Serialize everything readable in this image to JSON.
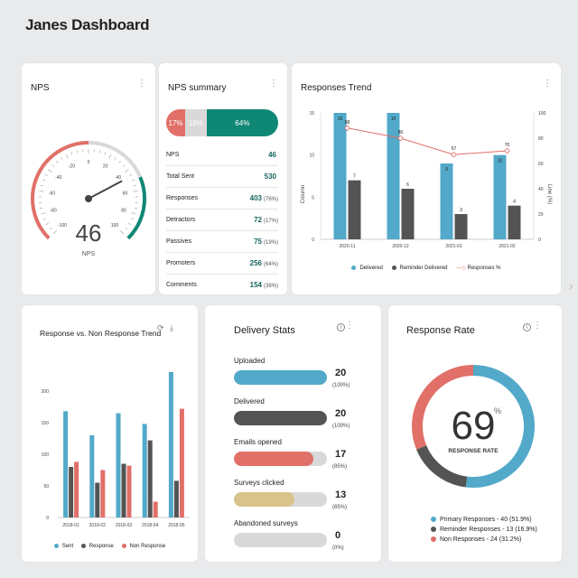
{
  "page": {
    "title": "Janes Dashboard"
  },
  "colors": {
    "teal": "#0f8775",
    "blue": "#52a9c9",
    "dark": "#545454",
    "red": "#e07068",
    "gray": "#d9d9d9",
    "sand": "#d8c48a"
  },
  "nps_card": {
    "title": "NPS",
    "value": "46",
    "value_label": "NPS",
    "ticks": [
      "-100",
      "-80",
      "-60",
      "-40",
      "-20",
      "0",
      "20",
      "40",
      "60",
      "80",
      "100"
    ],
    "gauge_value": 46
  },
  "summary": {
    "title": "NPS summary",
    "bar": [
      {
        "label": "17%",
        "value": 17,
        "color": "#e07068"
      },
      {
        "label": "19%",
        "value": 19,
        "color": "#d9d9d9"
      },
      {
        "label": "64%",
        "value": 64,
        "color": "#0f8775"
      }
    ],
    "rows": [
      {
        "label": "NPS",
        "value": "46",
        "pct": ""
      },
      {
        "label": "Total Sent",
        "value": "530",
        "pct": ""
      },
      {
        "label": "Responses",
        "value": "403",
        "pct": "(76%)"
      },
      {
        "label": "Detractors",
        "value": "72",
        "pct": "(17%)"
      },
      {
        "label": "Passives",
        "value": "75",
        "pct": "(19%)"
      },
      {
        "label": "Promoters",
        "value": "256",
        "pct": "(64%)"
      },
      {
        "label": "Comments",
        "value": "154",
        "pct": "(38%)"
      }
    ]
  },
  "trend": {
    "title": "Responses Trend",
    "left_axis_label": "Column",
    "right_axis_label": "Line (%)",
    "legend": [
      "Delivered",
      "Reminder Delivered",
      "Responses %"
    ]
  },
  "resp_vs_non": {
    "title": "Response vs. Non Response Trend",
    "legend": [
      "Sent",
      "Response",
      "Non Response"
    ]
  },
  "delivery": {
    "title": "Delivery Stats",
    "rows": [
      {
        "label": "Uploaded",
        "value": "20",
        "pct": "(100%)",
        "fill": 1.0,
        "color": "#52a9c9"
      },
      {
        "label": "Delivered",
        "value": "20",
        "pct": "(100%)",
        "fill": 1.0,
        "color": "#545454"
      },
      {
        "label": "Emails opened",
        "value": "17",
        "pct": "(85%)",
        "fill": 0.85,
        "color": "#e07068"
      },
      {
        "label": "Surveys clicked",
        "value": "13",
        "pct": "(65%)",
        "fill": 0.65,
        "color": "#d8c48a"
      },
      {
        "label": "Abandoned surveys",
        "value": "0",
        "pct": "(0%)",
        "fill": 0.0,
        "color": "#d9d9d9"
      }
    ]
  },
  "response_rate": {
    "title": "Response Rate",
    "value": "69",
    "unit": "%",
    "caption": "RESPONSE RATE",
    "legend": [
      {
        "label": "Primary Responses - 40 (51.9%)",
        "color": "#52a9c9",
        "value": 40
      },
      {
        "label": "Reminder Responses - 13 (16.9%)",
        "color": "#545454",
        "value": 13
      },
      {
        "label": "Non Responses - 24 (31.2%)",
        "color": "#e07068",
        "value": 24
      }
    ]
  },
  "chart_data": [
    {
      "type": "bar",
      "title": "Responses Trend",
      "categories": [
        "2020-11",
        "2020-12",
        "2021-01",
        "2021-02"
      ],
      "series": [
        {
          "name": "Delivered",
          "values": [
            15,
            15,
            9,
            10
          ],
          "color": "#52a9c9"
        },
        {
          "name": "Reminder Delivered",
          "values": [
            7,
            6,
            3,
            4
          ],
          "color": "#545454"
        },
        {
          "name": "Responses %",
          "kind": "line",
          "axis": "right",
          "values": [
            88,
            80,
            67,
            70
          ],
          "color": "#e07068"
        }
      ],
      "ylabel": "Column",
      "ylim": [
        0,
        15
      ],
      "yticks": [
        "0",
        "5",
        "10",
        "15"
      ],
      "y2label": "Line (%)",
      "y2lim": [
        0,
        100
      ],
      "y2ticks": [
        "0",
        "20",
        "40",
        "60",
        "80",
        "100"
      ],
      "legend": "bottom"
    },
    {
      "type": "bar",
      "title": "Response vs. Non Response Trend",
      "categories": [
        "2018-01",
        "2018-02",
        "2018-03",
        "2018-04",
        "2018-05"
      ],
      "series": [
        {
          "name": "Sent",
          "values": [
            168,
            130,
            165,
            148,
            230
          ],
          "color": "#52a9c9"
        },
        {
          "name": "Response",
          "values": [
            80,
            55,
            85,
            122,
            58
          ],
          "color": "#545454"
        },
        {
          "name": "Non Response",
          "values": [
            88,
            75,
            82,
            25,
            172
          ],
          "color": "#e07068"
        }
      ],
      "ylim": [
        0,
        250
      ],
      "yticks": [
        "0",
        "50",
        "100",
        "150",
        "200"
      ],
      "legend": "bottom"
    }
  ]
}
